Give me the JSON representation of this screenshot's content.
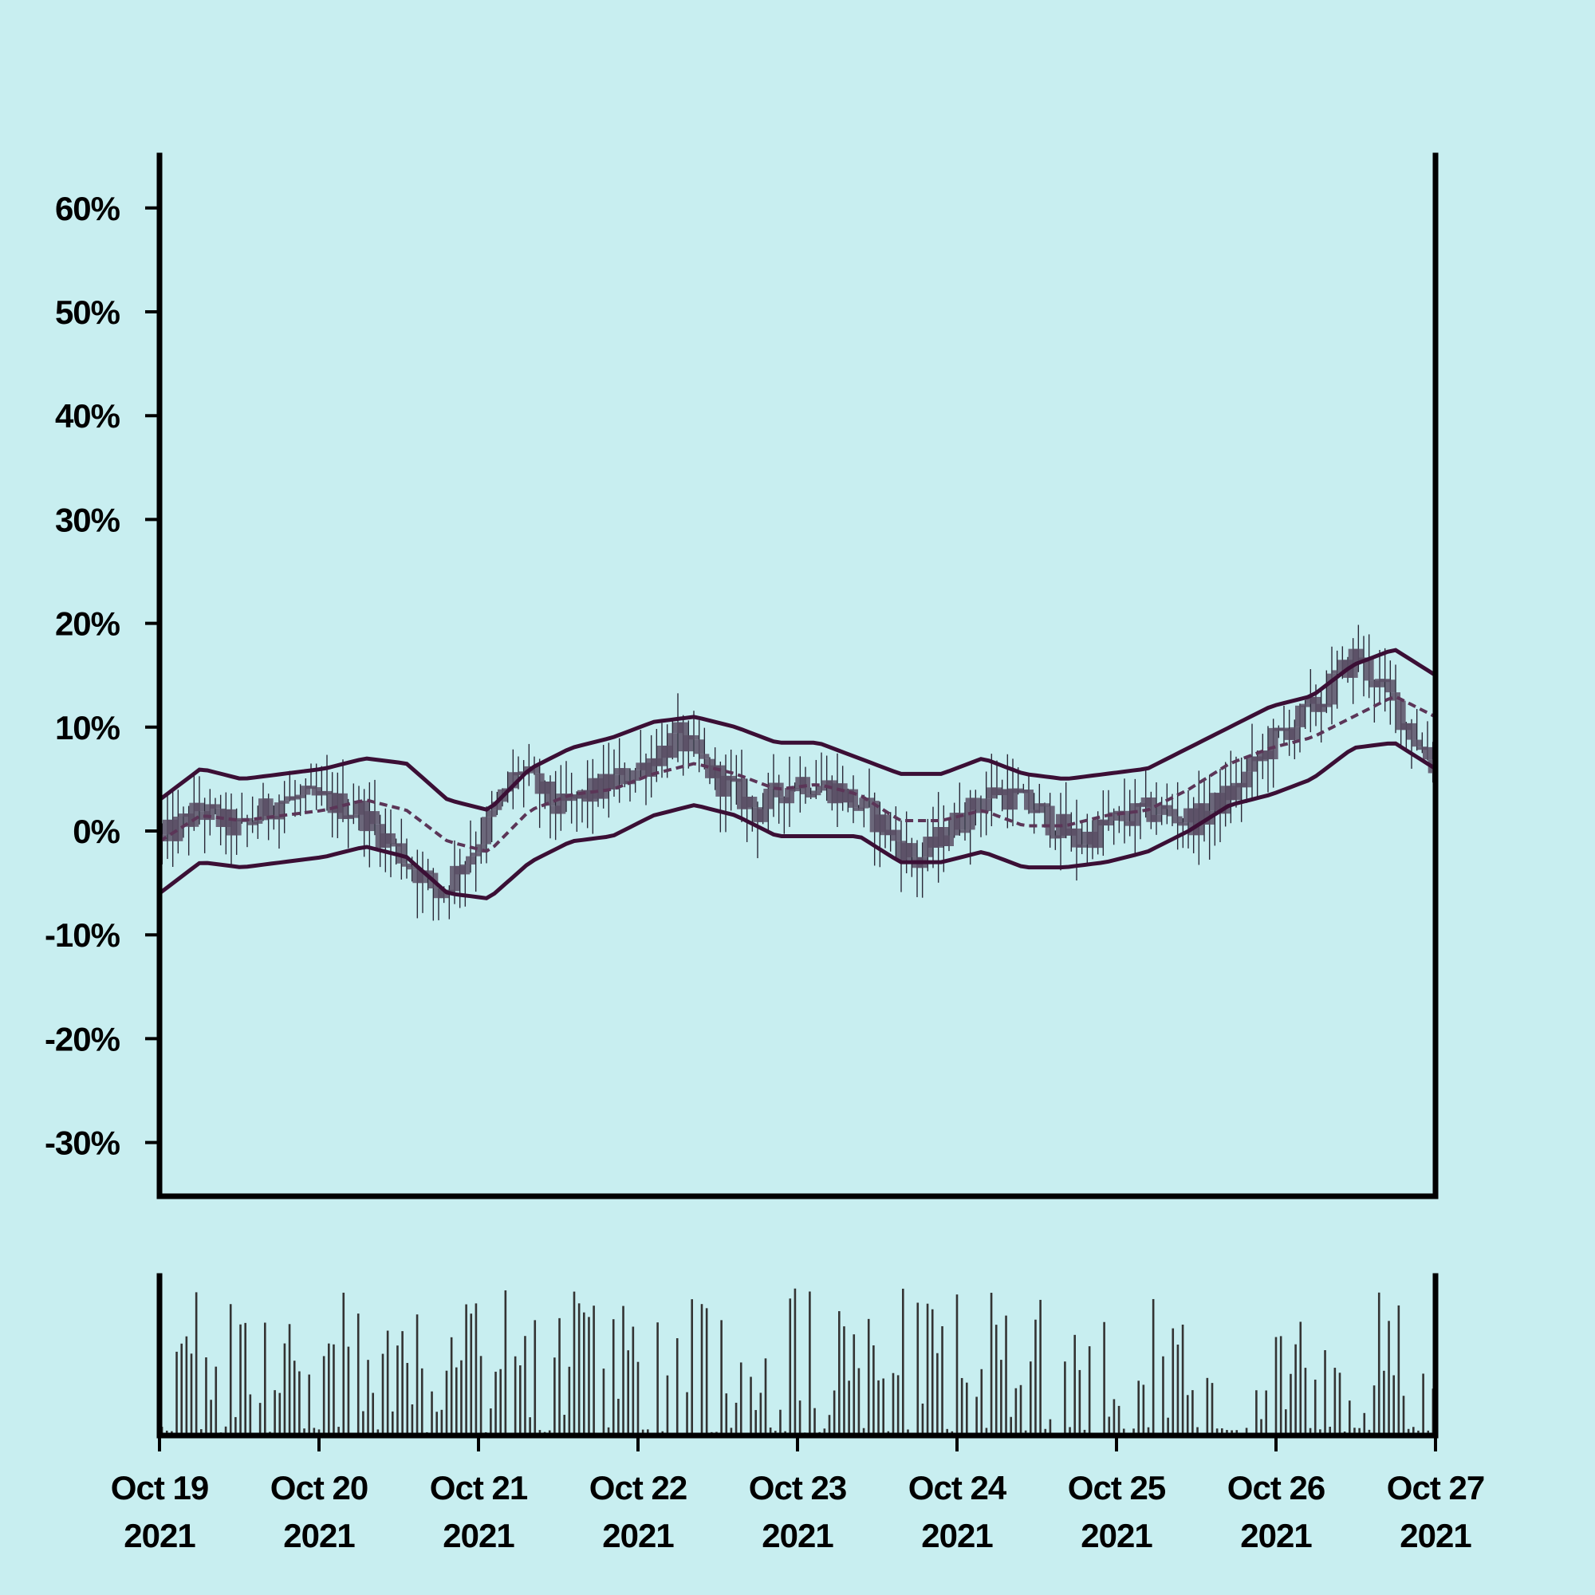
{
  "chart_data": {
    "type": "candlestick",
    "title": "",
    "xlabel": "",
    "ylabel": "",
    "y_axis": {
      "ticks": [
        60,
        50,
        40,
        30,
        20,
        10,
        0,
        -10,
        -20,
        -30
      ],
      "tick_labels": [
        "60%",
        "50%",
        "40%",
        "30%",
        "20%",
        "10%",
        "0%",
        "-10%",
        "-20%",
        "-30%"
      ],
      "range": [
        -35,
        65
      ],
      "unit": "%"
    },
    "x_axis": {
      "ticks": [
        {
          "month_day": "Oct 19",
          "year": "2021"
        },
        {
          "month_day": "Oct 20",
          "year": "2021"
        },
        {
          "month_day": "Oct 21",
          "year": "2021"
        },
        {
          "month_day": "Oct 22",
          "year": "2021"
        },
        {
          "month_day": "Oct 23",
          "year": "2021"
        },
        {
          "month_day": "Oct 24",
          "year": "2021"
        },
        {
          "month_day": "Oct 25",
          "year": "2021"
        },
        {
          "month_day": "Oct 26",
          "year": "2021"
        },
        {
          "month_day": "Oct 27",
          "year": "2021"
        }
      ],
      "range": [
        "2021-10-19",
        "2021-10-27"
      ]
    },
    "series": [
      {
        "kind": "price_close_trend",
        "x_days_from_oct19": [
          0,
          0.25,
          0.5,
          0.75,
          1,
          1.25,
          1.5,
          1.75,
          2,
          2.25,
          2.5,
          2.75,
          3,
          3.25,
          3.5,
          3.75,
          4,
          4.25,
          4.5,
          4.75,
          5,
          5.25,
          5.5,
          5.75,
          6,
          6.25,
          6.5,
          6.75,
          7,
          7.25,
          7.5,
          7.75,
          8
        ],
        "values": [
          -1,
          2,
          0,
          3,
          3,
          2,
          -2,
          -6,
          -1,
          6,
          2,
          4,
          6,
          9,
          5,
          2,
          5,
          4,
          1,
          -3,
          1,
          4,
          2,
          -1,
          1,
          2,
          1,
          4,
          9,
          12,
          17,
          12,
          6
        ]
      },
      {
        "kind": "bollinger_upper",
        "values": [
          3,
          6,
          5,
          5.5,
          6,
          7,
          6.5,
          3,
          2,
          6,
          8,
          9,
          10.5,
          11,
          10,
          8.5,
          8.5,
          7,
          5.5,
          5.5,
          7,
          5.5,
          5,
          5.5,
          6,
          8,
          10,
          12,
          13,
          16,
          17.5,
          15
        ]
      },
      {
        "kind": "bollinger_middle",
        "values": [
          -1,
          1.5,
          1,
          1.5,
          2,
          3,
          2,
          -1,
          -2,
          2,
          3.5,
          4,
          5.5,
          6.5,
          5.5,
          4,
          4.5,
          3.5,
          1,
          1,
          2,
          0.5,
          0.5,
          1.5,
          2,
          4,
          6.5,
          8,
          9,
          11,
          13,
          11
        ]
      },
      {
        "kind": "bollinger_lower",
        "values": [
          -6,
          -3,
          -3.5,
          -3,
          -2.5,
          -1.5,
          -2.5,
          -6,
          -6.5,
          -3,
          -1,
          -0.5,
          1.5,
          2.5,
          1.5,
          -0.5,
          -0.5,
          -0.5,
          -3,
          -3,
          -2,
          -3.5,
          -3.5,
          -3,
          -2,
          0,
          2.5,
          3.5,
          5,
          8,
          8.5,
          6
        ]
      }
    ],
    "volume": {
      "has_axis_labels": false,
      "relative_range": [
        0,
        1
      ]
    },
    "colors": {
      "background": "#c8eef0",
      "candle_body": "#5a4f65",
      "candle_wick": "#2a2838",
      "bands": "#3b0f35",
      "middle_band": "#5b3557",
      "volume_bar": "#333333",
      "axis": "#000000"
    },
    "grid": false,
    "legend": "none"
  }
}
